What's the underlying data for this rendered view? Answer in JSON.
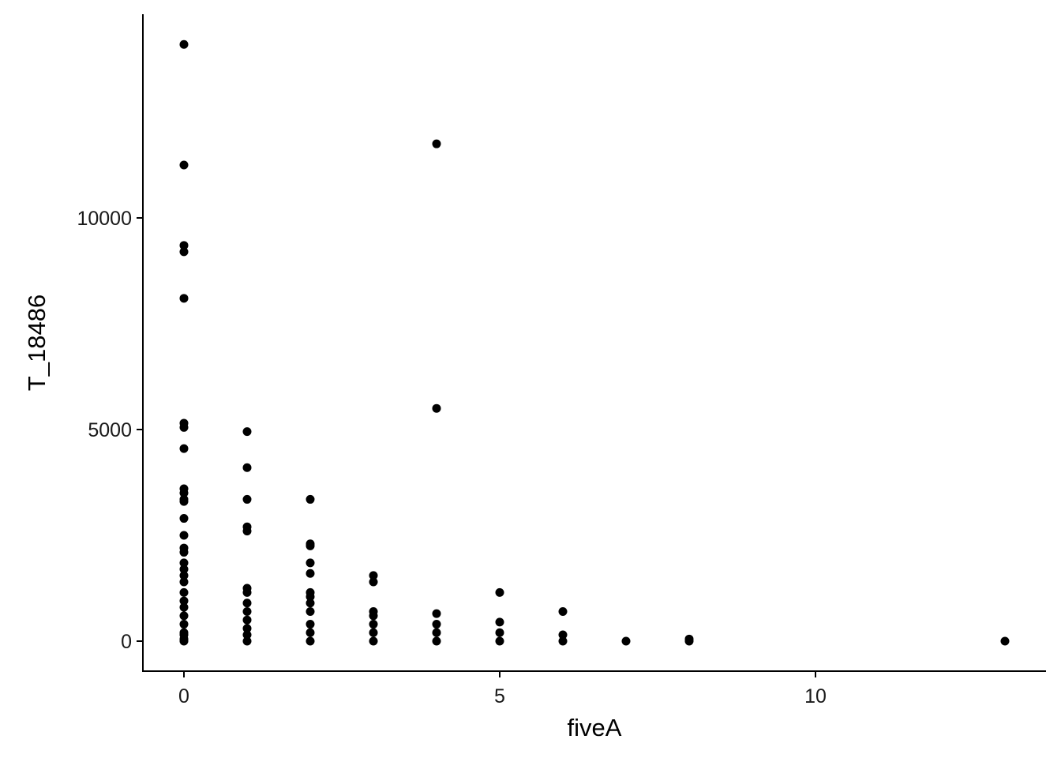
{
  "chart_data": {
    "type": "scatter",
    "x_label": "fiveA",
    "y_label": "T_18486",
    "color": "#000000",
    "x": [
      0,
      0,
      0,
      0,
      0,
      0,
      0,
      0,
      0,
      0,
      0,
      0,
      0,
      0,
      0,
      0,
      0,
      0,
      0,
      0,
      0,
      0,
      0,
      0,
      0,
      0,
      0,
      0,
      0,
      1,
      1,
      1,
      1,
      1,
      1,
      1,
      1,
      1,
      1,
      1,
      1,
      1,
      2,
      2,
      2,
      2,
      2,
      2,
      2,
      2,
      2,
      2,
      2,
      2,
      3,
      3,
      3,
      3,
      3,
      3,
      3,
      4,
      4,
      4,
      4,
      4,
      4,
      5,
      5,
      5,
      5,
      6,
      6,
      6,
      7,
      8,
      8,
      13
    ],
    "y": [
      14100,
      11250,
      9350,
      9200,
      8100,
      5150,
      5050,
      4550,
      3600,
      3500,
      3350,
      3300,
      2900,
      2500,
      2200,
      2100,
      1850,
      1700,
      1550,
      1400,
      1150,
      950,
      800,
      600,
      400,
      200,
      150,
      50,
      0,
      4950,
      4100,
      3350,
      2700,
      2600,
      1250,
      1150,
      900,
      700,
      500,
      300,
      150,
      0,
      3350,
      2300,
      2250,
      1850,
      1600,
      1150,
      1050,
      900,
      700,
      400,
      200,
      0,
      1550,
      1400,
      700,
      600,
      400,
      200,
      0,
      11750,
      5500,
      650,
      400,
      200,
      0,
      1150,
      450,
      200,
      0,
      700,
      150,
      0,
      0,
      50,
      0,
      0
    ],
    "xlim": [
      -0.65,
      13.65
    ],
    "ylim": [
      -709,
      14813
    ],
    "xticks": [
      0,
      5,
      10
    ],
    "yticks": [
      0,
      5000,
      10000
    ]
  }
}
